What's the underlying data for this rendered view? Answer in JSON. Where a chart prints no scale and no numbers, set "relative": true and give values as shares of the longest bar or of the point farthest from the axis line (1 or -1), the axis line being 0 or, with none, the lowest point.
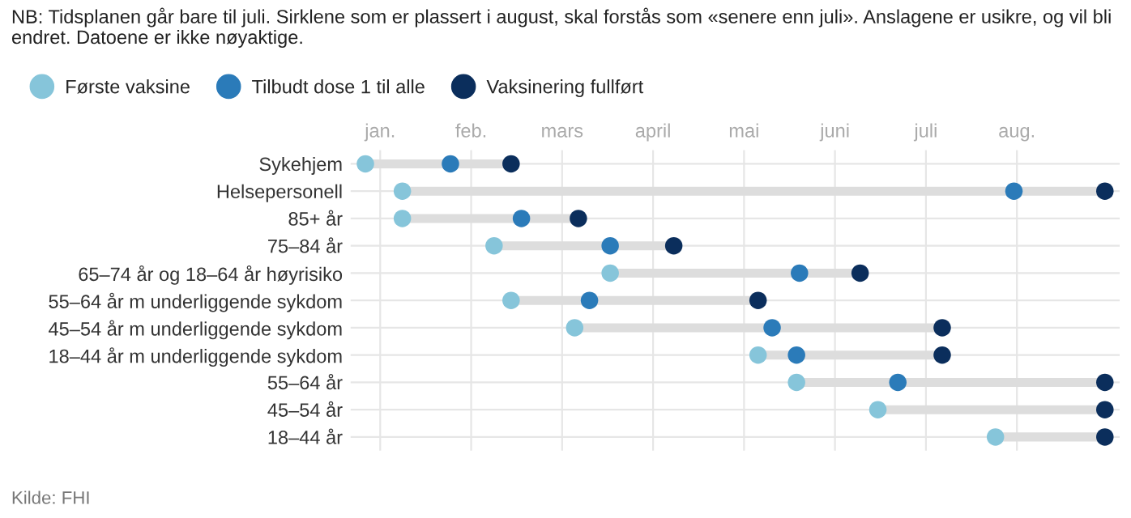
{
  "chart_data": {
    "type": "scatter",
    "orientation": "horizontal",
    "relative": true,
    "title": "NB: Tidsplanen går bare til juli. Sirklene som er plassert i august, skal forstås som «senere enn juli». Anslagene er usikre, og vil bli endret. Datoene er ikke nøyaktige.",
    "categories": [
      "Sykehjem",
      "Helsepersonell",
      "85+ år",
      "75–84 år",
      "65–74 år og 18–64 år høyrisiko",
      "55–64 år m underliggende sykdom",
      "45–54 år m underliggende sykdom",
      "18–44 år m underliggende sykdom",
      "55–64 år",
      "45–54 år",
      "18–44 år"
    ],
    "series": [
      {
        "name": "Første vaksine",
        "color": "#86c5da",
        "values": [
          0,
          0.05,
          0.05,
          0.174,
          0.331,
          0.197,
          0.283,
          0.531,
          0.583,
          0.693,
          0.852
        ]
      },
      {
        "name": "Tilbudt dose 1 til alle",
        "color": "#2b7bb9",
        "values": [
          0.115,
          0.877,
          0.211,
          0.331,
          0.587,
          0.303,
          0.55,
          0.583,
          0.72,
          null,
          null
        ]
      },
      {
        "name": "Vaksinering fullført",
        "color": "#0b2e5c",
        "values": [
          0.197,
          1,
          0.288,
          0.417,
          0.669,
          0.531,
          0.78,
          0.78,
          1,
          1,
          1
        ]
      }
    ],
    "grid": true,
    "legend": "top left",
    "marker": "circle",
    "annotations": [
      "jan.",
      "feb.",
      "mars",
      "april",
      "mai",
      "juni",
      "juli",
      "aug.",
      "Kilde: FHI"
    ]
  }
}
